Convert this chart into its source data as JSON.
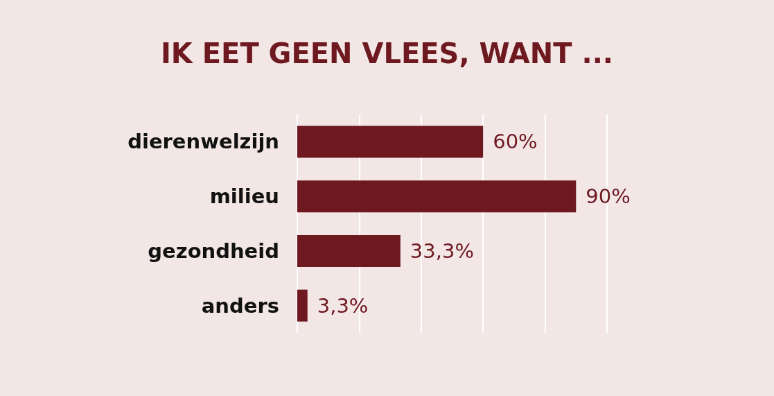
{
  "chart_data": {
    "type": "bar",
    "orientation": "horizontal",
    "title": "IK EET GEEN VLEES, WANT ...",
    "categories": [
      "dierenwelzijn",
      "milieu",
      "gezondheid",
      "anders"
    ],
    "values": [
      60,
      90,
      33.3,
      3.3
    ],
    "value_labels": [
      "60%",
      "90%",
      "33,3%",
      "3,3%"
    ],
    "color": "#6e1820",
    "xlim": [
      0,
      100
    ],
    "xticks": [
      {
        "value": 0,
        "label": null
      },
      {
        "value": 20,
        "label": null
      },
      {
        "value": 40,
        "label": null
      },
      {
        "value": 60,
        "label": null
      },
      {
        "value": 80,
        "label": null
      },
      {
        "value": 100,
        "label": null
      }
    ],
    "grid": "x",
    "tick_labels": "y"
  }
}
